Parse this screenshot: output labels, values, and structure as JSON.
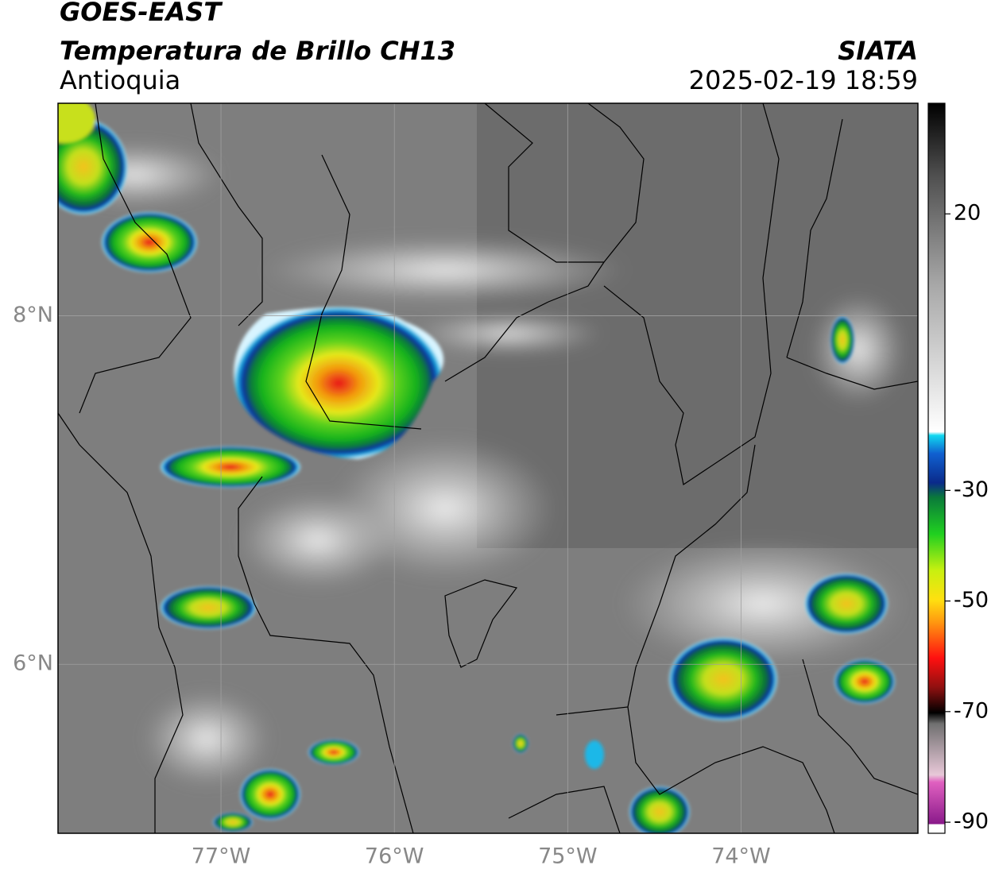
{
  "chart_data": {
    "type": "map",
    "title": "GOES-EAST",
    "subtitle": "Temperatura de Brillo CH13",
    "region": "Antioquia",
    "source": "SIATA",
    "datetime": "2025-02-19 18:59",
    "xlim": [
      -77.94,
      -72.98
    ],
    "xticks": [
      {
        "value": -77,
        "label": "77°W"
      },
      {
        "value": -76,
        "label": "76°W"
      },
      {
        "value": -75,
        "label": "75°W"
      },
      {
        "value": -74,
        "label": "74°W"
      }
    ],
    "ylim": [
      5.03,
      9.22
    ],
    "yticks": [
      {
        "value": 6,
        "label": "6°N"
      },
      {
        "value": 8,
        "label": "8°N"
      }
    ],
    "grid": true,
    "colorbar": {
      "lim": [
        -92,
        40
      ],
      "ticks": [
        -90,
        -70,
        -50,
        -30,
        20
      ]
    }
  }
}
